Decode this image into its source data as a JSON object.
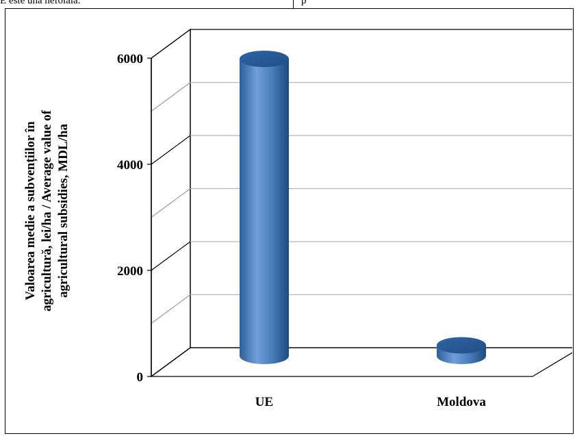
{
  "page": {
    "top_text_left": "E este una nefolală.",
    "top_text_right": "p"
  },
  "chart_data": {
    "type": "bar",
    "style": "3d-cylinder",
    "categories": [
      "UE",
      "Moldova"
    ],
    "values": [
      5600,
      200
    ],
    "title": "",
    "xlabel": "",
    "ylabel": [
      "Valoarea medie a subvențiilor în",
      "agricultură, lei/ha / Average value of",
      "agricultural subsidies, MDL/ha"
    ],
    "ylim": [
      0,
      6000
    ],
    "yticks": [
      {
        "value": 0,
        "label": "0"
      },
      {
        "value": 2000,
        "label": "2000"
      },
      {
        "value": 4000,
        "label": "4000"
      },
      {
        "value": 6000,
        "label": "6000"
      }
    ],
    "grid": true,
    "legend": "none",
    "bar_color": "#4a7ebb",
    "bar_color_dark": "#2d5f9a",
    "bar_color_light": "#6f9fd8"
  }
}
